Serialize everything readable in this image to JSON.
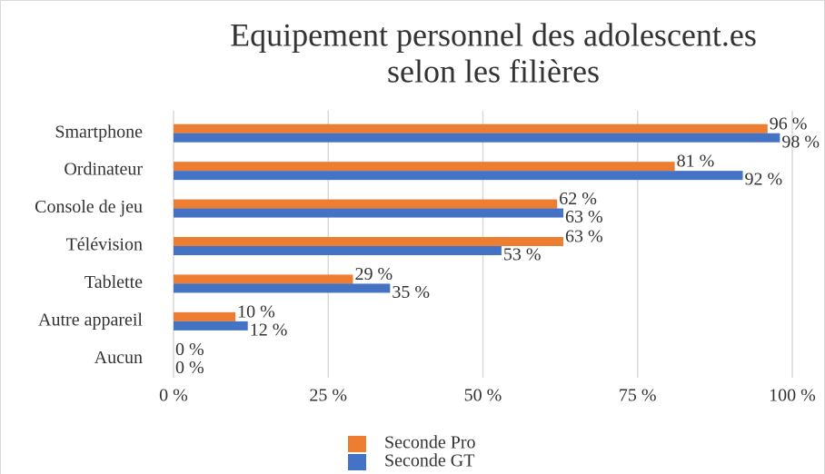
{
  "chart_data": {
    "type": "hbar",
    "title": [
      "Equipement personnel des adolescent.es",
      "selon les filières"
    ],
    "categories": [
      "Smartphone",
      "Ordinateur",
      "Console de jeu",
      "Télévision",
      "Tablette",
      "Autre appareil",
      "Aucun"
    ],
    "series": [
      {
        "name": "Seconde Pro",
        "color": "#ED7D31",
        "values": [
          96,
          81,
          62,
          63,
          29,
          10,
          0
        ],
        "value_labels": [
          "96 %",
          "81 %",
          "62 %",
          "63 %",
          "29 %",
          "10 %",
          "0 %"
        ]
      },
      {
        "name": "Seconde GT",
        "color": "#4472C4",
        "values": [
          98,
          92,
          63,
          53,
          35,
          12,
          0
        ],
        "value_labels": [
          "98 %",
          "92 %",
          "63 %",
          "53 %",
          "35 %",
          "12 %",
          "0 %"
        ]
      }
    ],
    "xlim": [
      0,
      100
    ],
    "xticks": [
      {
        "value": 0,
        "label": "0 %"
      },
      {
        "value": 25,
        "label": "25 %"
      },
      {
        "value": 50,
        "label": "50 %"
      },
      {
        "value": 75,
        "label": "75 %"
      },
      {
        "value": 100,
        "label": "100 %"
      }
    ],
    "grid": true,
    "legend": "bottom"
  }
}
